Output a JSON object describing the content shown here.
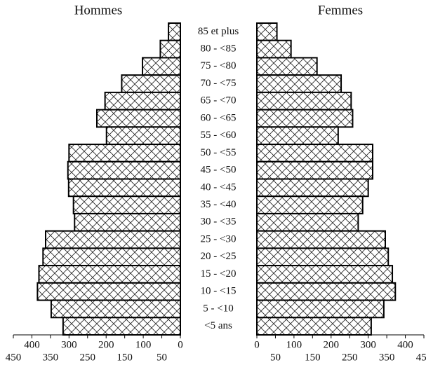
{
  "chart_data": {
    "type": "population_pyramid",
    "categories": [
      "85 et plus",
      "80 - <85",
      "75 - <80",
      "70 - <75",
      "65 - <70",
      "60 - <65",
      "55 - <60",
      "50 - <55",
      "45 - <50",
      "40 - <45",
      "35 - <40",
      "30 - <35",
      "25 - <30",
      "20 - <25",
      "15 - <20",
      "10 - <15",
      "5 - <10",
      "<5 ans"
    ],
    "series": [
      {
        "name": "Hommes",
        "color": "#ffffff",
        "values": [
          32,
          54,
          102,
          158,
          203,
          225,
          199,
          300,
          303,
          301,
          288,
          285,
          363,
          370,
          381,
          385,
          348,
          316
        ]
      },
      {
        "name": "Femmes",
        "color": "#ffffff",
        "values": [
          54,
          92,
          162,
          227,
          254,
          258,
          219,
          312,
          312,
          300,
          285,
          273,
          346,
          354,
          365,
          373,
          342,
          308
        ]
      }
    ],
    "xlim": [
      0,
      450
    ],
    "xticks": [
      0,
      50,
      100,
      150,
      200,
      250,
      300,
      350,
      400,
      450
    ]
  }
}
